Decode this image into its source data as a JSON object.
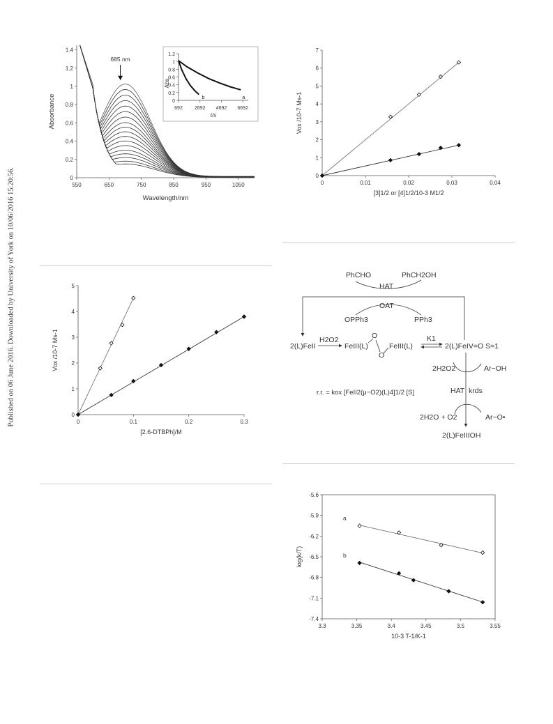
{
  "side_note": "Published on 06 June 2016. Downloaded by University of York on 10/06/2016 15:20:56.",
  "chart_data": [
    {
      "id": "uv_vis",
      "type": "line",
      "xlabel": "Wavelength/nm",
      "ylabel": "Absorbance",
      "xlim": [
        550,
        1100
      ],
      "ylim": [
        0,
        1.45
      ],
      "xticks": [
        "550",
        "650",
        "750",
        "850",
        "950",
        "1050"
      ],
      "yticks": [
        "0",
        "0.2",
        "0.4",
        "0.6",
        "0.8",
        "1",
        "1.2",
        "1.4"
      ],
      "annotation": "685 nm",
      "series_peak_values": [
        1.02,
        0.96,
        0.9,
        0.84,
        0.78,
        0.72,
        0.66,
        0.6,
        0.55,
        0.5,
        0.45,
        0.4,
        0.35,
        0.3,
        0.26,
        0.22,
        0.18,
        0.15
      ],
      "inset": {
        "type": "line",
        "xlabel": "t/s",
        "ylabel": "Abs.",
        "xlim": [
          692,
          7200
        ],
        "ylim": [
          0,
          1.2
        ],
        "xticks": [
          "692",
          "2692",
          "4692",
          "6692"
        ],
        "yticks": [
          "0",
          "0.2",
          "0.4",
          "0.6",
          "0.8",
          "1",
          "1.2"
        ],
        "series": [
          {
            "name": "a",
            "x": [
              692,
              1500,
              2500,
              3500,
              4500,
              5500,
              6500
            ],
            "y": [
              1.02,
              0.86,
              0.7,
              0.56,
              0.45,
              0.35,
              0.27
            ]
          },
          {
            "name": "b",
            "x": [
              692,
              1000,
              1400,
              1800,
              2200,
              2600
            ],
            "y": [
              1.02,
              0.78,
              0.55,
              0.38,
              0.25,
              0.15
            ]
          }
        ]
      }
    },
    {
      "id": "vox_sqrt",
      "type": "scatter",
      "xlabel": "[3]1/2 or [4]1/2/10-3  M1/2",
      "ylabel": "Vox /10-7 Ms-1",
      "xlim": [
        0,
        0.04
      ],
      "ylim": [
        0,
        7
      ],
      "xticks": [
        "0",
        "0.01",
        "0.02",
        "0.03",
        "0.04"
      ],
      "yticks": [
        "0",
        "1",
        "2",
        "3",
        "4",
        "5",
        "6",
        "7"
      ],
      "series": [
        {
          "marker": "open-diamond",
          "x": [
            0,
            0.0158,
            0.0224,
            0.0274,
            0.0316
          ],
          "y": [
            0,
            3.28,
            4.52,
            5.52,
            6.32
          ]
        },
        {
          "marker": "filled-diamond",
          "x": [
            0,
            0.0158,
            0.0224,
            0.0274,
            0.0316
          ],
          "y": [
            0,
            0.86,
            1.2,
            1.55,
            1.7
          ]
        }
      ]
    },
    {
      "id": "vox_dtbph",
      "type": "scatter",
      "xlabel": "[2.6-DTBPh]/M",
      "ylabel": "Vox /10-7 Ms-1",
      "xlim": [
        0,
        0.3
      ],
      "ylim": [
        0,
        5
      ],
      "xticks": [
        "0",
        "0.1",
        "0.2",
        "0.3"
      ],
      "yticks": [
        "0",
        "1",
        "2",
        "3",
        "4",
        "5"
      ],
      "series": [
        {
          "marker": "open-diamond",
          "x": [
            0,
            0.04,
            0.06,
            0.08,
            0.1
          ],
          "y": [
            0,
            1.8,
            2.77,
            3.48,
            4.52
          ]
        },
        {
          "marker": "filled-diamond",
          "x": [
            0,
            0.06,
            0.1,
            0.15,
            0.2,
            0.25,
            0.3
          ],
          "y": [
            0,
            0.76,
            1.3,
            1.92,
            2.55,
            3.2,
            3.8
          ]
        }
      ]
    },
    {
      "id": "eyring",
      "type": "scatter",
      "xlabel": "10-3 T-1/K-1",
      "ylabel": "log(k/T)",
      "xlim": [
        3.3,
        3.55
      ],
      "ylim": [
        -7.4,
        -5.6
      ],
      "xticks": [
        "3.3",
        "3.35",
        "3.4",
        "3.45",
        "3.5",
        "3.55"
      ],
      "yticks": [
        "-5.6",
        "-5.9",
        "-6.2",
        "-6.5",
        "-6.8",
        "-7.1",
        "-7.4"
      ],
      "series": [
        {
          "name": "a",
          "marker": "open-diamond",
          "x": [
            3.354,
            3.411,
            3.472,
            3.532
          ],
          "y": [
            -6.05,
            -6.15,
            -6.33,
            -6.44
          ]
        },
        {
          "name": "b",
          "marker": "filled-diamond",
          "x": [
            3.354,
            3.411,
            3.432,
            3.483,
            3.532
          ],
          "y": [
            -6.59,
            -6.74,
            -6.84,
            -7.0,
            -7.16
          ]
        }
      ]
    }
  ],
  "scheme": {
    "phcho": "PhCHO",
    "phch2oh": "PhCH2OH",
    "hat_top": "HAT",
    "oat": "OAT",
    "opph3": "OPPh3",
    "pph3": "PPh3",
    "left_species": "2(L)FeII",
    "h2o2": "H2O2",
    "fe3_a": "FeIII(L)",
    "bridge_o1": "O",
    "bridge_o2": "O",
    "fe3_b": "FeIII(L)",
    "k1": "K1",
    "fe4": "2(L)FeIV=O  S=1",
    "h2o2_2": "2H2O2",
    "aroh": "Ar−OH",
    "hat_mid": "HAT",
    "krds": "krds",
    "rate_law": "r.r. = kox [FeII2(μ−O2)(L)4]1/2 [S]",
    "products_left": "2H2O + O2",
    "aro": "Ar−O•",
    "final": "2(L)FeIIIOH"
  }
}
